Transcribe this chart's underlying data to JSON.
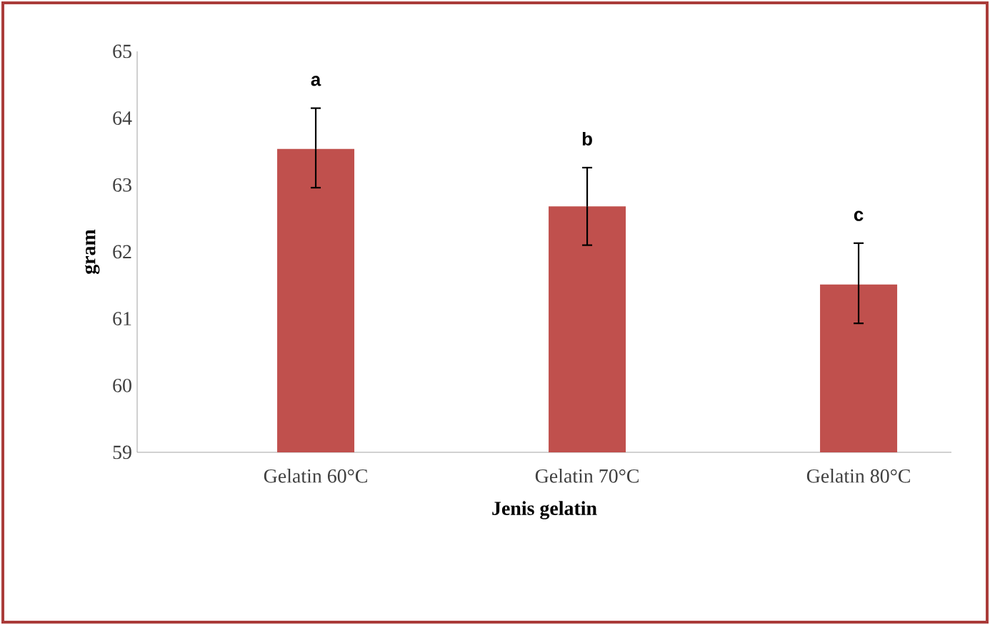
{
  "chart_data": {
    "type": "bar",
    "xlabel": "Jenis gelatin",
    "ylabel": "gram",
    "categories": [
      "Gelatin 60°C",
      "Gelatin 70°C",
      "Gelatin 80°C"
    ],
    "values": [
      63.54,
      62.68,
      61.51
    ],
    "color": "#c0504d",
    "errors": [
      [
        62.96,
        64.15
      ],
      [
        62.1,
        63.26
      ],
      [
        60.93,
        62.13
      ]
    ],
    "ylim": [
      59,
      65
    ],
    "yticks": [
      59,
      60,
      61,
      62,
      63,
      64,
      65
    ],
    "grid": false,
    "annotations": [
      "a",
      "b",
      "c"
    ]
  }
}
